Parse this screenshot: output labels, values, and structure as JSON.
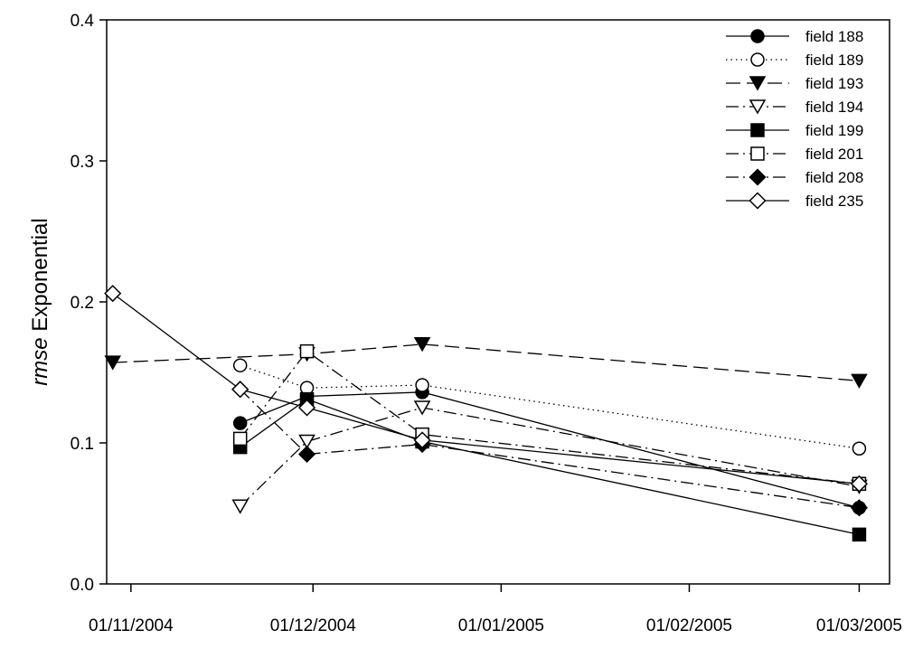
{
  "chart_data": {
    "type": "line",
    "ylabel_italic": "rmse",
    "ylabel_rest": " Exponential",
    "ylim": [
      0,
      0.4
    ],
    "yticks": [
      0.0,
      0.1,
      0.2,
      0.3,
      0.4
    ],
    "ytick_labels": [
      "0.0",
      "0.1",
      "0.2",
      "0.3",
      "0.4"
    ],
    "xlim": [
      "2004-10-28",
      "2005-03-06"
    ],
    "xticks": [
      "2004-11-01",
      "2004-12-01",
      "2005-01-01",
      "2005-02-01",
      "2005-03-01"
    ],
    "xtick_labels": [
      "01/11/2004",
      "01/12/2004",
      "01/01/2005",
      "01/02/2005",
      "01/03/2005"
    ],
    "grid": false,
    "legend_position": "top-right",
    "series": [
      {
        "name": "field 188",
        "marker": "circle",
        "filled": true,
        "dash": "solid",
        "x": [
          "2004-11-19",
          "2004-11-30",
          "2004-12-19",
          "2005-03-01"
        ],
        "y": [
          0.114,
          0.133,
          0.136,
          0.054
        ]
      },
      {
        "name": "field 189",
        "marker": "circle",
        "filled": false,
        "dash": "dotted",
        "x": [
          "2004-11-19",
          "2004-11-30",
          "2004-12-19",
          "2005-03-01"
        ],
        "y": [
          0.155,
          0.139,
          0.141,
          0.096
        ]
      },
      {
        "name": "field 193",
        "marker": "triangle-down",
        "filled": true,
        "dash": "longdash",
        "x": [
          "2004-10-29",
          "2004-11-30",
          "2004-12-19",
          "2005-03-01"
        ],
        "y": [
          0.157,
          0.163,
          0.17,
          0.144
        ]
      },
      {
        "name": "field 194",
        "marker": "triangle-down",
        "filled": false,
        "dash": "dashdot",
        "x": [
          "2004-11-19",
          "2004-11-30",
          "2004-12-19",
          "2005-03-01"
        ],
        "y": [
          0.055,
          0.101,
          0.125,
          0.069
        ]
      },
      {
        "name": "field 199",
        "marker": "square",
        "filled": true,
        "dash": "solid",
        "x": [
          "2004-11-19",
          "2004-11-30",
          "2004-12-19",
          "2005-03-01"
        ],
        "y": [
          0.097,
          0.131,
          0.101,
          0.035
        ]
      },
      {
        "name": "field 201",
        "marker": "square",
        "filled": false,
        "dash": "dashdot",
        "x": [
          "2004-11-19",
          "2004-11-30",
          "2004-12-19",
          "2005-03-01"
        ],
        "y": [
          0.103,
          0.165,
          0.106,
          0.071
        ]
      },
      {
        "name": "field 208",
        "marker": "diamond",
        "filled": true,
        "dash": "dashdot",
        "x": [
          "2004-11-19",
          "2004-11-30",
          "2004-12-19",
          "2005-03-01"
        ],
        "y": [
          0.138,
          0.092,
          0.099,
          0.054
        ]
      },
      {
        "name": "field 235",
        "marker": "diamond",
        "filled": false,
        "dash": "solid",
        "x": [
          "2004-10-29",
          "2004-11-19",
          "2004-11-30",
          "2004-12-19",
          "2005-03-01"
        ],
        "y": [
          0.206,
          0.138,
          0.125,
          0.102,
          0.071
        ]
      }
    ]
  }
}
